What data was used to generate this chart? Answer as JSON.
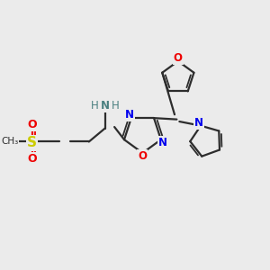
{
  "background_color": "#ebebeb",
  "bond_color": "#2d2d2d",
  "N_color": "#0000ee",
  "O_color": "#ee0000",
  "S_color": "#cccc00",
  "H_color": "#4a8080",
  "figsize": [
    3.0,
    3.0
  ],
  "dpi": 100,
  "xlim": [
    0,
    10
  ],
  "ylim": [
    0,
    10
  ]
}
